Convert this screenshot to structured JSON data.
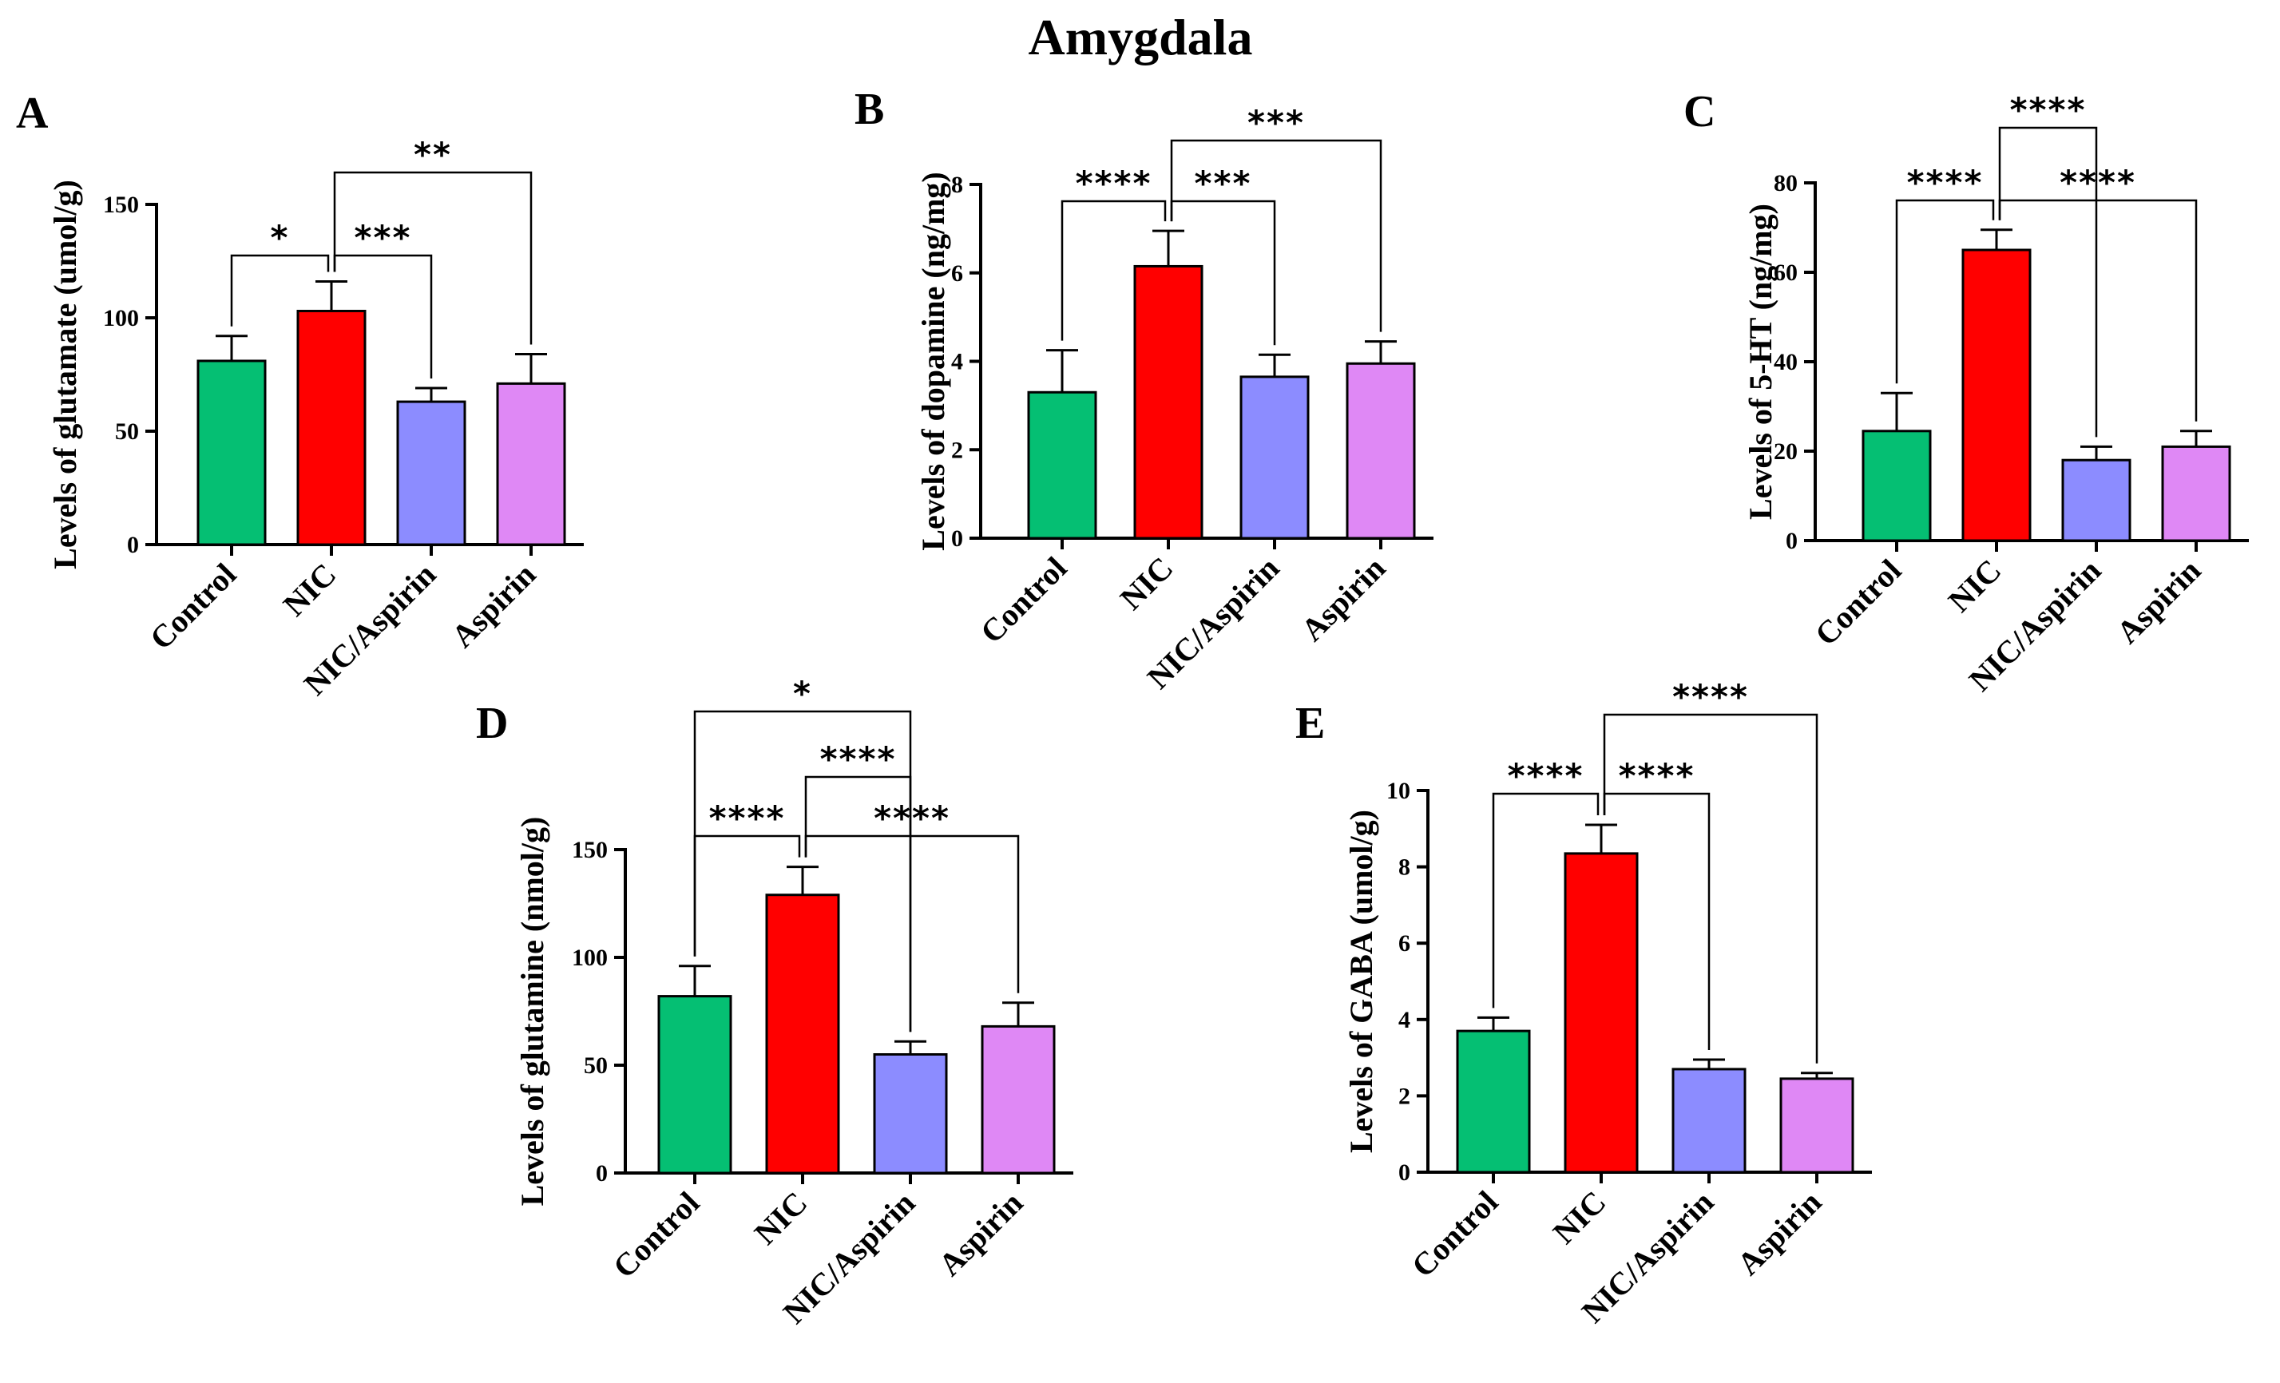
{
  "title": "Amygdala",
  "colors": [
    "#05bf73",
    "#ff0000",
    "#8c8cff",
    "#df88f5"
  ],
  "chart_data": [
    {
      "panel": "A",
      "type": "bar",
      "ylabel": "Levels of glutamate (umol/g)",
      "categories": [
        "Control",
        "NIC",
        "NIC/Aspirin",
        "Aspirin"
      ],
      "values": [
        81,
        103,
        63,
        71
      ],
      "errors": [
        11,
        13,
        6,
        13
      ],
      "ylim": [
        0,
        150
      ],
      "yticks": [
        0,
        50,
        100,
        150
      ],
      "significance": [
        {
          "from": 0,
          "to": 1,
          "label": "*"
        },
        {
          "from": 1,
          "to": 2,
          "label": "***"
        },
        {
          "from": 1,
          "to": 3,
          "label": "**"
        }
      ]
    },
    {
      "panel": "B",
      "type": "bar",
      "ylabel": "Levels of dopamine (ng/mg)",
      "categories": [
        "Control",
        "NIC",
        "NIC/Aspirin",
        "Aspirin"
      ],
      "values": [
        3.3,
        6.15,
        3.65,
        3.95
      ],
      "errors": [
        0.95,
        0.8,
        0.5,
        0.5
      ],
      "ylim": [
        0,
        8
      ],
      "yticks": [
        0,
        2,
        4,
        6,
        8
      ],
      "significance": [
        {
          "from": 0,
          "to": 1,
          "label": "****"
        },
        {
          "from": 1,
          "to": 2,
          "label": "***"
        },
        {
          "from": 1,
          "to": 3,
          "label": "***"
        }
      ]
    },
    {
      "panel": "C",
      "type": "bar",
      "ylabel": "Levels of 5-HT (ng/mg)",
      "categories": [
        "Control",
        "NIC",
        "NIC/Aspirin",
        "Aspirin"
      ],
      "values": [
        24.5,
        65,
        18,
        21
      ],
      "errors": [
        8.5,
        4.5,
        3,
        3.5
      ],
      "ylim": [
        0,
        80
      ],
      "yticks": [
        0,
        20,
        40,
        60,
        80
      ],
      "significance": [
        {
          "from": 0,
          "to": 1,
          "label": "****"
        },
        {
          "from": 1,
          "to": 3,
          "label": "****"
        },
        {
          "from": 1,
          "to": 2,
          "label": "****"
        }
      ]
    },
    {
      "panel": "D",
      "type": "bar",
      "ylabel": "Levels of glutamine (nmol/g)",
      "categories": [
        "Control",
        "NIC",
        "NIC/Aspirin",
        "Aspirin"
      ],
      "values": [
        82,
        129,
        55,
        68
      ],
      "errors": [
        14,
        13,
        6,
        11
      ],
      "ylim": [
        0,
        150
      ],
      "yticks": [
        0,
        50,
        100,
        150
      ],
      "significance": [
        {
          "from": 0,
          "to": 1,
          "label": "****"
        },
        {
          "from": 1,
          "to": 3,
          "label": "****"
        },
        {
          "from": 1,
          "to": 2,
          "label": "****"
        },
        {
          "from": 0,
          "to": 2,
          "label": "*"
        }
      ]
    },
    {
      "panel": "E",
      "type": "bar",
      "ylabel": "Levels of GABA (umol/g)",
      "categories": [
        "Control",
        "NIC",
        "NIC/Aspirin",
        "Aspirin"
      ],
      "values": [
        3.7,
        8.35,
        2.7,
        2.45
      ],
      "errors": [
        0.35,
        0.75,
        0.25,
        0.15
      ],
      "ylim": [
        0,
        10
      ],
      "yticks": [
        0,
        2,
        4,
        6,
        8,
        10
      ],
      "significance": [
        {
          "from": 0,
          "to": 1,
          "label": "****"
        },
        {
          "from": 1,
          "to": 2,
          "label": "****"
        },
        {
          "from": 1,
          "to": 3,
          "label": "****"
        }
      ]
    }
  ]
}
